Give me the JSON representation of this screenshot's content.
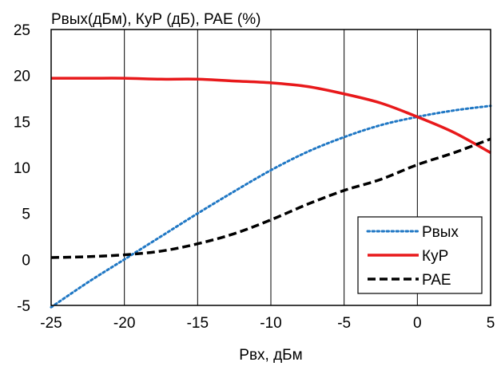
{
  "chart_data": {
    "type": "line",
    "ylabel": "Pвых(дБм), КуР (дБ), PAE (%)",
    "xlabel": "Pвх, дБм",
    "xlim": [
      -25,
      5
    ],
    "ylim": [
      -5,
      25
    ],
    "x_ticks": [
      "-25",
      "-20",
      "-15",
      "-10",
      "-5",
      "0",
      "5"
    ],
    "y_ticks": [
      "-5",
      "0",
      "5",
      "10",
      "15",
      "20",
      "25"
    ],
    "grid": "vertical",
    "legend_position": "bottom-right",
    "series": [
      {
        "name": "Pвых",
        "color": "#1f77c4",
        "style": "dotted",
        "x": [
          -25,
          -22.5,
          -20,
          -17.5,
          -15,
          -12.5,
          -10,
          -7.5,
          -5,
          -2.5,
          0,
          2.5,
          5
        ],
        "y": [
          -5.2,
          -2.5,
          0.0,
          2.5,
          5.0,
          7.4,
          9.7,
          11.7,
          13.3,
          14.6,
          15.5,
          16.2,
          16.7
        ]
      },
      {
        "name": "КуР",
        "color": "#e8191b",
        "style": "solid",
        "x": [
          -25,
          -22.5,
          -20,
          -17.5,
          -15,
          -12.5,
          -10,
          -7.5,
          -5,
          -2.5,
          0,
          2.5,
          5
        ],
        "y": [
          19.7,
          19.7,
          19.7,
          19.6,
          19.6,
          19.4,
          19.2,
          18.8,
          18.0,
          17.0,
          15.5,
          13.8,
          11.6
        ]
      },
      {
        "name": "PAE",
        "color": "#000000",
        "style": "dashed",
        "x": [
          -25,
          -22.5,
          -20,
          -17.5,
          -15,
          -12.5,
          -10,
          -7.5,
          -5,
          -2.5,
          0,
          2.5,
          5
        ],
        "y": [
          0.2,
          0.3,
          0.5,
          0.9,
          1.7,
          2.8,
          4.3,
          6.0,
          7.5,
          8.7,
          10.3,
          11.6,
          13.1
        ]
      }
    ]
  }
}
